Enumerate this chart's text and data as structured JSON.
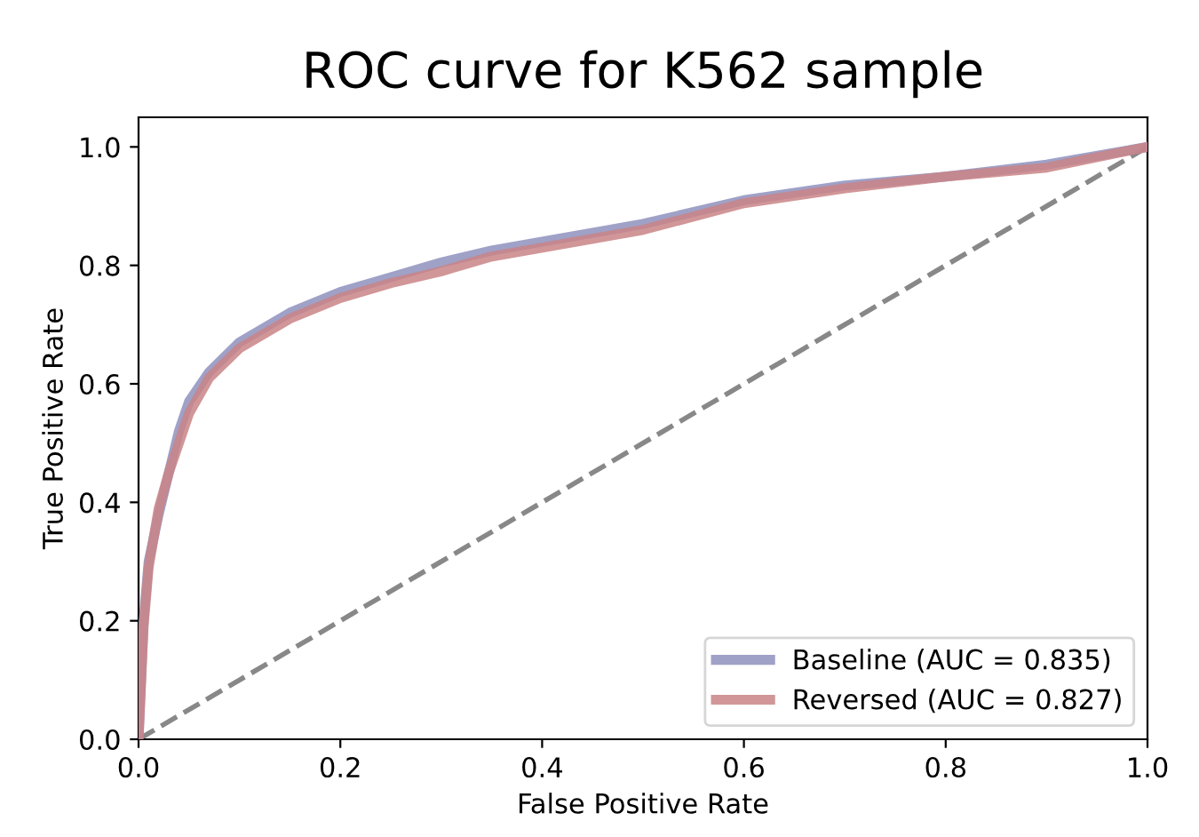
{
  "chart_data": {
    "type": "line",
    "title": "ROC curve for K562 sample",
    "xlabel": "False Positive Rate",
    "ylabel": "True Positive Rate",
    "xlim": [
      0.0,
      1.0
    ],
    "ylim": [
      0.0,
      1.05
    ],
    "xticks": [
      {
        "value": 0,
        "label": "0.0"
      },
      0.2,
      0.4,
      0.6,
      0.8,
      {
        "value": 1,
        "label": "1.0"
      }
    ],
    "yticks": [
      {
        "value": 0,
        "label": "0.0"
      },
      0.2,
      0.4,
      0.6,
      0.8,
      {
        "value": 1,
        "label": "1.0"
      }
    ],
    "grid": false,
    "legend": "bottom right",
    "line_style": "solid",
    "series": [
      {
        "name": "Baseline (AUC = 0.835)",
        "color": "#8e90bd",
        "x": [
          0,
          0.005,
          0.01,
          0.02,
          0.03,
          0.04,
          0.05,
          0.07,
          0.1,
          0.15,
          0.2,
          0.25,
          0.3,
          0.35,
          0.4,
          0.5,
          0.6,
          0.7,
          0.8,
          0.9,
          1.0
        ],
        "values": [
          0,
          0.2,
          0.3,
          0.38,
          0.45,
          0.52,
          0.57,
          0.62,
          0.67,
          0.72,
          0.755,
          0.78,
          0.805,
          0.825,
          0.84,
          0.87,
          0.91,
          0.935,
          0.95,
          0.97,
          1.0
        ]
      },
      {
        "name": "Reversed (AUC = 0.827)",
        "color": "#c98486",
        "x": [
          0,
          0.005,
          0.01,
          0.02,
          0.03,
          0.04,
          0.05,
          0.07,
          0.1,
          0.15,
          0.2,
          0.25,
          0.3,
          0.35,
          0.4,
          0.5,
          0.6,
          0.7,
          0.8,
          0.9,
          1.0
        ],
        "values": [
          0,
          0.19,
          0.29,
          0.39,
          0.45,
          0.5,
          0.55,
          0.61,
          0.66,
          0.71,
          0.745,
          0.77,
          0.79,
          0.815,
          0.83,
          0.86,
          0.905,
          0.93,
          0.95,
          0.965,
          1.0
        ]
      },
      {
        "color": "#888888",
        "line_style": "dashed",
        "x": [
          0,
          1
        ],
        "values": [
          0,
          1
        ]
      }
    ]
  }
}
